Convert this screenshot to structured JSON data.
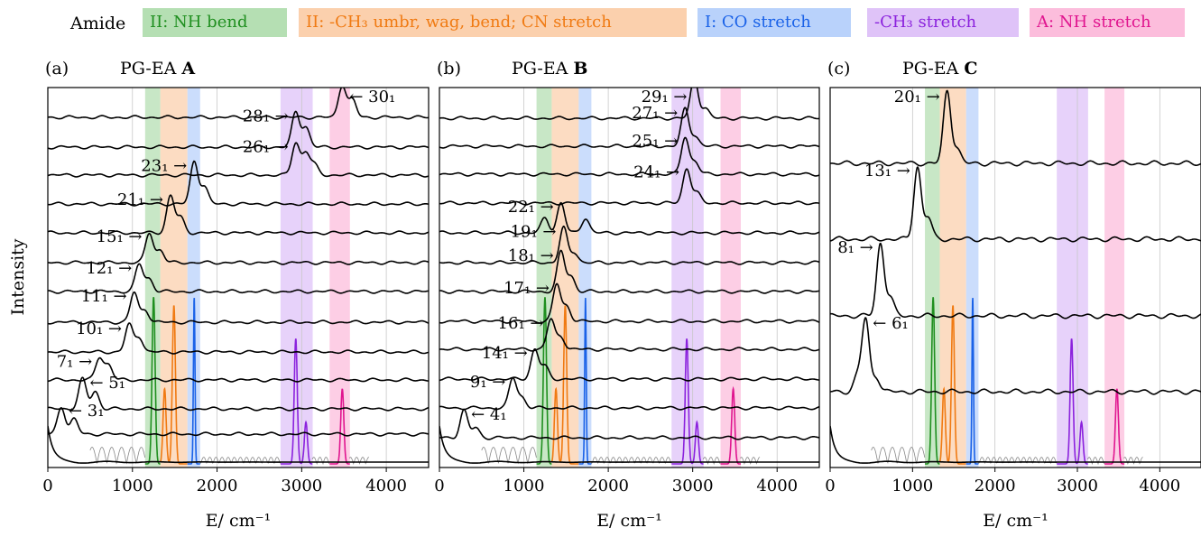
{
  "legend": {
    "title": "Amide",
    "items": [
      {
        "label": "II: NH   bend",
        "color": "#1f8f1f",
        "bg": "#b5dfb3"
      },
      {
        "label": "II: -CH₃ umbr, wag, bend; CN stretch",
        "color": "#f07a12",
        "bg": "#fbd0ad"
      },
      {
        "label": "I: CO   stretch",
        "color": "#1a62e8",
        "bg": "#b9d2fb"
      },
      {
        "label": "-CH₃ stretch",
        "color": "#8b22dd",
        "bg": "#dfc3f8"
      },
      {
        "label": "A: NH   stretch",
        "color": "#e0158f",
        "bg": "#fcbddc"
      }
    ]
  },
  "ylabel": "Intensity",
  "xlabel": "E/ cm⁻¹",
  "chart_data": [
    {
      "type": "line",
      "panel_label": "(a)",
      "title_prefix": "PG-EA",
      "title_bold": "A",
      "xlim": [
        0,
        4500
      ],
      "xticks": [
        0,
        1000,
        2000,
        3000,
        4000
      ],
      "bands_cm1": {
        "nh_bend": [
          1150,
          1330
        ],
        "ch3_cn": [
          1330,
          1650
        ],
        "co_stretch": [
          1650,
          1800
        ],
        "ch3_stretch": [
          2750,
          3130
        ],
        "nh_stretch": [
          3330,
          3570
        ]
      },
      "spectra": [
        {
          "label": "3₁",
          "arrow": "left",
          "peaks": [
            [
              160,
              0.55
            ],
            [
              310,
              0.3
            ]
          ]
        },
        {
          "label": "5₁",
          "arrow": "left",
          "peaks": [
            [
              410,
              0.6
            ],
            [
              560,
              0.35
            ]
          ]
        },
        {
          "label": "7₁",
          "arrow": "right",
          "peaks": [
            [
              610,
              0.45
            ],
            [
              720,
              0.3
            ]
          ]
        },
        {
          "label": "10₁",
          "arrow": "right",
          "peaks": [
            [
              960,
              0.55
            ],
            [
              1080,
              0.3
            ]
          ]
        },
        {
          "label": "11₁",
          "arrow": "right",
          "peaks": [
            [
              1020,
              0.6
            ],
            [
              1150,
              0.25
            ]
          ]
        },
        {
          "label": "12₁",
          "arrow": "right",
          "peaks": [
            [
              1080,
              0.55
            ],
            [
              1200,
              0.25
            ]
          ]
        },
        {
          "label": "15₁",
          "arrow": "right",
          "peaks": [
            [
              1200,
              0.6
            ],
            [
              1330,
              0.25
            ]
          ]
        },
        {
          "label": "21₁",
          "arrow": "right",
          "peaks": [
            [
              1450,
              0.75
            ],
            [
              1570,
              0.3
            ]
          ]
        },
        {
          "label": "23₁",
          "arrow": "right",
          "peaks": [
            [
              1730,
              0.85
            ],
            [
              1850,
              0.35
            ]
          ]
        },
        {
          "label": "26₁",
          "arrow": "right",
          "peaks": [
            [
              2930,
              0.65
            ],
            [
              3050,
              0.45
            ],
            [
              3150,
              0.2
            ]
          ]
        },
        {
          "label": "28₁",
          "arrow": "right",
          "peaks": [
            [
              2930,
              0.7
            ],
            [
              3050,
              0.4
            ]
          ]
        },
        {
          "label": "30₁",
          "arrow": "left",
          "peaks": [
            [
              3480,
              0.65
            ],
            [
              3600,
              0.35
            ]
          ]
        }
      ]
    },
    {
      "type": "line",
      "panel_label": "(b)",
      "title_prefix": "PG-EA",
      "title_bold": "B",
      "xlim": [
        0,
        4500
      ],
      "xticks": [
        0,
        1000,
        2000,
        3000,
        4000
      ],
      "bands_cm1": {
        "nh_bend": [
          1150,
          1330
        ],
        "ch3_cn": [
          1330,
          1650
        ],
        "co_stretch": [
          1650,
          1800
        ],
        "ch3_stretch": [
          2750,
          3130
        ],
        "nh_stretch": [
          3330,
          3570
        ]
      },
      "spectra": [
        {
          "label": "4₁",
          "arrow": "left",
          "peaks": [
            [
              290,
              0.55
            ],
            [
              430,
              0.2
            ]
          ]
        },
        {
          "label": "9₁",
          "arrow": "right",
          "peaks": [
            [
              870,
              0.6
            ],
            [
              980,
              0.2
            ]
          ]
        },
        {
          "label": "14₁",
          "arrow": "right",
          "peaks": [
            [
              1130,
              0.6
            ],
            [
              1250,
              0.25
            ]
          ]
        },
        {
          "label": "16₁",
          "arrow": "right",
          "peaks": [
            [
              1320,
              0.6
            ],
            [
              1440,
              0.25
            ]
          ]
        },
        {
          "label": "17₁",
          "arrow": "right",
          "peaks": [
            [
              1390,
              0.75
            ],
            [
              1510,
              0.3
            ]
          ]
        },
        {
          "label": "18₁",
          "arrow": "right",
          "peaks": [
            [
              1440,
              0.8
            ],
            [
              1560,
              0.3
            ]
          ]
        },
        {
          "label": "19₁",
          "arrow": "right",
          "peaks": [
            [
              1470,
              0.7
            ],
            [
              1600,
              0.2
            ]
          ]
        },
        {
          "label": "22₁",
          "arrow": "right",
          "peaks": [
            [
              1440,
              0.6
            ],
            [
              1250,
              0.3
            ],
            [
              1730,
              0.3
            ]
          ]
        },
        {
          "label": "24₁",
          "arrow": "right",
          "peaks": [
            [
              2930,
              0.7
            ],
            [
              3050,
              0.2
            ]
          ]
        },
        {
          "label": "25₁",
          "arrow": "right",
          "peaks": [
            [
              2910,
              0.75
            ],
            [
              3030,
              0.25
            ]
          ]
        },
        {
          "label": "27₁",
          "arrow": "right",
          "peaks": [
            [
              2910,
              0.75
            ],
            [
              3030,
              0.2
            ]
          ]
        },
        {
          "label": "29₁",
          "arrow": "right",
          "peaks": [
            [
              3020,
              0.8
            ],
            [
              3150,
              0.2
            ]
          ]
        }
      ]
    },
    {
      "type": "line",
      "panel_label": "(c)",
      "title_prefix": "PG-EA",
      "title_bold": "C",
      "xlim": [
        0,
        4500
      ],
      "xticks": [
        0,
        1000,
        2000,
        3000,
        4000
      ],
      "bands_cm1": {
        "nh_bend": [
          1150,
          1330
        ],
        "ch3_cn": [
          1330,
          1650
        ],
        "co_stretch": [
          1650,
          1800
        ],
        "ch3_stretch": [
          2750,
          3130
        ],
        "nh_stretch": [
          3330,
          3570
        ]
      },
      "spectra": [
        {
          "label": "6₁",
          "arrow": "left",
          "peaks": [
            [
              430,
              1.0
            ],
            [
              560,
              0.2
            ],
            [
              330,
              0.2
            ]
          ]
        },
        {
          "label": "8₁",
          "arrow": "right",
          "peaks": [
            [
              610,
              1.0
            ],
            [
              730,
              0.25
            ]
          ]
        },
        {
          "label": "13₁",
          "arrow": "right",
          "peaks": [
            [
              1060,
              1.0
            ],
            [
              1190,
              0.3
            ]
          ]
        },
        {
          "label": "20₁",
          "arrow": "right",
          "peaks": [
            [
              1420,
              1.0
            ],
            [
              1540,
              0.2
            ]
          ]
        }
      ]
    }
  ]
}
